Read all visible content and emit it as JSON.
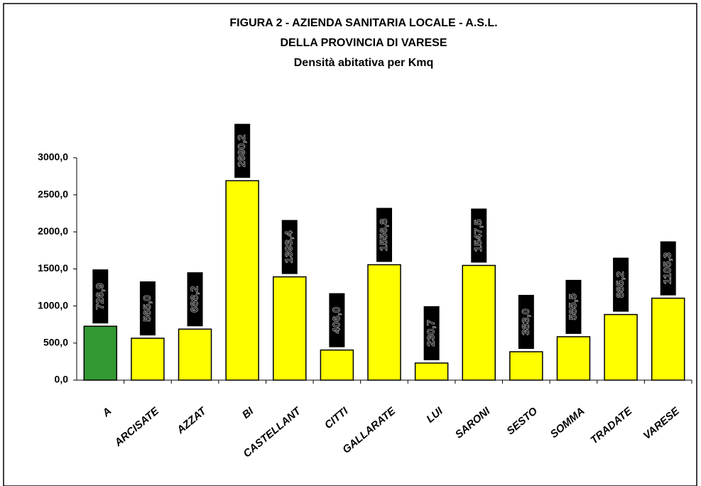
{
  "chart_data": {
    "type": "bar",
    "title": [
      "FIGURA 2 - AZIENDA SANITARIA LOCALE - A.S.L.",
      "DELLA PROVINCIA DI VARESE",
      "Densità abitativa per Kmq"
    ],
    "categories": [
      "A",
      "ARCISATE",
      "AZZAT",
      "BI",
      "CASTELLANT",
      "CITTI",
      "GALLARATE",
      "LUI",
      "SARONI",
      "SESTO",
      "SOMMA",
      "TRADATE",
      "VARESE"
    ],
    "values": [
      726.9,
      565.0,
      688.2,
      2690.2,
      1393.4,
      406.0,
      1556.8,
      230.7,
      1547.5,
      383.0,
      585.5,
      885.2,
      1105.3
    ],
    "value_labels": [
      "726,9",
      "565,0",
      "688,2",
      "2690,2",
      "1393,4",
      "406,0",
      "1556,8",
      "230,7",
      "1547,5",
      "383,0",
      "585,5",
      "885,2",
      "1105,3"
    ],
    "colors": [
      "#339933",
      "#ffff00",
      "#ffff00",
      "#ffff00",
      "#ffff00",
      "#ffff00",
      "#ffff00",
      "#ffff00",
      "#ffff00",
      "#ffff00",
      "#ffff00",
      "#ffff00",
      "#ffff00"
    ],
    "ylim": [
      0,
      3000
    ],
    "yticks": [
      {
        "value": 0,
        "label": "0,0"
      },
      {
        "value": 500,
        "label": "500,0"
      },
      {
        "value": 1000,
        "label": "1000,0"
      },
      {
        "value": 1500,
        "label": "1500,0"
      },
      {
        "value": 2000,
        "label": "2000,0"
      },
      {
        "value": 2500,
        "label": "2500,0"
      },
      {
        "value": 3000,
        "label": "3000,0"
      }
    ],
    "grid": false
  }
}
